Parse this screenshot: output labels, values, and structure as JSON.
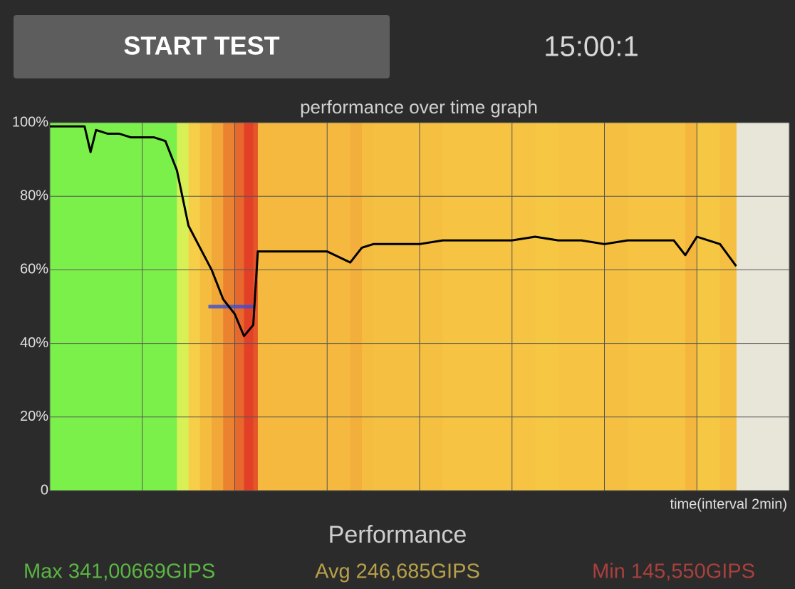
{
  "button": "START TEST",
  "timer": "15:00:1",
  "chart_data": {
    "type": "line",
    "title": "performance over time graph",
    "x_label": "time(interval 2min)",
    "x": [
      0,
      0.25,
      0.5,
      0.75,
      0.88,
      1,
      1.25,
      1.5,
      1.75,
      2,
      2.25,
      2.5,
      2.75,
      3,
      3.25,
      3.5,
      3.75,
      4,
      4.2,
      4.4,
      4.5,
      4.75,
      5,
      5.5,
      6,
      6.5,
      6.75,
      7,
      7.5,
      8,
      8.5,
      9,
      9.5,
      10,
      10.5,
      11,
      11.5,
      12,
      12.5,
      13,
      13.5,
      13.75,
      14,
      14.5,
      14.85
    ],
    "series": [
      {
        "color": "#000000",
        "values": [
          99,
          99,
          99,
          99,
          92,
          98,
          97,
          97,
          96,
          96,
          96,
          95,
          87,
          72,
          66,
          60,
          52,
          48,
          42,
          45,
          65,
          65,
          65,
          65,
          65,
          62,
          66,
          67,
          67,
          67,
          68,
          68,
          68,
          68,
          69,
          68,
          68,
          67,
          68,
          68,
          68,
          64,
          69,
          67,
          61
        ]
      }
    ],
    "marker": {
      "value": 50,
      "x": [
        3.43,
        4.42
      ],
      "color": "#3a4fd8"
    },
    "xlim": [
      0,
      16
    ],
    "xticks": [
      0,
      2,
      4,
      6,
      8,
      10,
      12,
      14,
      16
    ],
    "ylim": [
      0,
      100
    ],
    "yticks": [
      0,
      {
        "value": 20,
        "label": "20%"
      },
      {
        "value": 40,
        "label": "40%"
      },
      {
        "value": 60,
        "label": "60%"
      },
      {
        "value": 80,
        "label": "80%"
      },
      {
        "value": 100,
        "label": "100%"
      }
    ],
    "grid": true,
    "plot_background": "#e8e6d8"
  },
  "stats": {
    "title": "Performance",
    "max": "Max 341,00669GIPS",
    "avg": "Avg 246,685GIPS",
    "min": "Min 145,550GIPS"
  }
}
